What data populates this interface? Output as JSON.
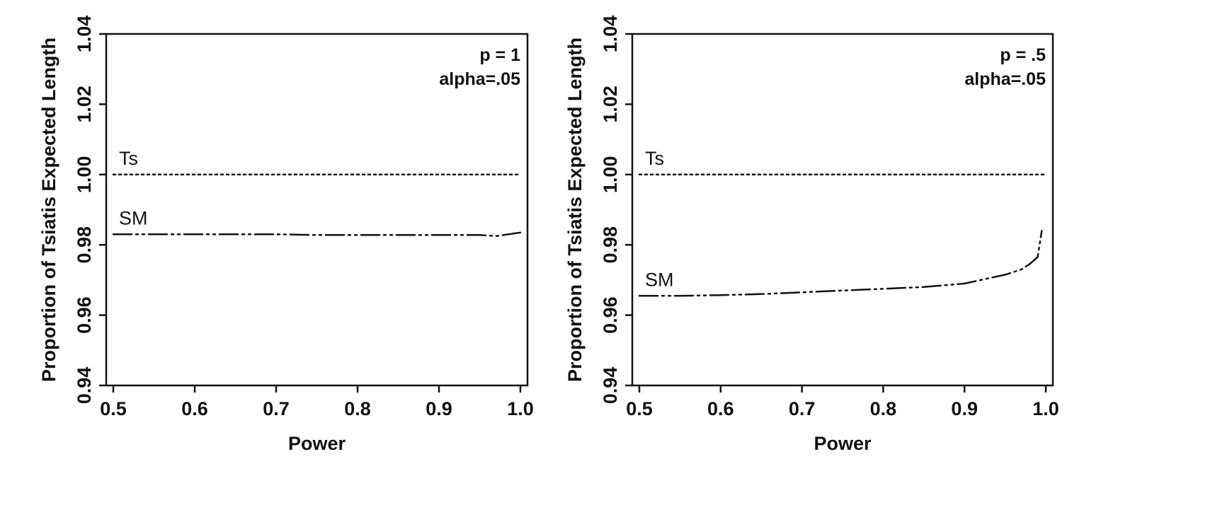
{
  "chart_data": [
    {
      "type": "line",
      "xlabel": "Power",
      "ylabel": "Proportion of Tsiatis Expected Length",
      "xlim": [
        0.5,
        1.0
      ],
      "ylim": [
        0.94,
        1.04
      ],
      "xticks": [
        "0.5",
        "0.6",
        "0.7",
        "0.8",
        "0.9",
        "1.0"
      ],
      "yticks": [
        "0.94",
        "0.96",
        "0.98",
        "1.00",
        "1.02",
        "1.04"
      ],
      "annotations": [
        "p = 1",
        "alpha=.05"
      ],
      "grid": false,
      "series": [
        {
          "name": "Ts",
          "style": "dotted",
          "x": [
            0.5,
            1.0
          ],
          "y": [
            1.0,
            1.0
          ]
        },
        {
          "name": "SM",
          "style": "dash-dot-dot",
          "x": [
            0.5,
            0.55,
            0.6,
            0.65,
            0.7,
            0.75,
            0.8,
            0.85,
            0.9,
            0.95,
            0.97,
            1.0
          ],
          "y": [
            0.983,
            0.983,
            0.983,
            0.983,
            0.983,
            0.9828,
            0.9828,
            0.9828,
            0.9828,
            0.9828,
            0.9825,
            0.9835
          ]
        }
      ]
    },
    {
      "type": "line",
      "xlabel": "Power",
      "ylabel": "Proportion of Tsiatis Expected Length",
      "xlim": [
        0.5,
        1.0
      ],
      "ylim": [
        0.94,
        1.04
      ],
      "xticks": [
        "0.5",
        "0.6",
        "0.7",
        "0.8",
        "0.9",
        "1.0"
      ],
      "yticks": [
        "0.94",
        "0.96",
        "0.98",
        "1.00",
        "1.02",
        "1.04"
      ],
      "annotations": [
        "p = .5",
        "alpha=.05"
      ],
      "grid": false,
      "series": [
        {
          "name": "Ts",
          "style": "dotted",
          "x": [
            0.5,
            1.0
          ],
          "y": [
            1.0,
            1.0
          ]
        },
        {
          "name": "SM",
          "style": "dash-dot-dot",
          "x": [
            0.5,
            0.55,
            0.6,
            0.65,
            0.7,
            0.75,
            0.8,
            0.85,
            0.9,
            0.93,
            0.95,
            0.97,
            0.98,
            0.99,
            0.995
          ],
          "y": [
            0.9655,
            0.9655,
            0.9657,
            0.966,
            0.9665,
            0.967,
            0.9675,
            0.968,
            0.969,
            0.9705,
            0.9715,
            0.973,
            0.9745,
            0.9765,
            0.984
          ]
        }
      ]
    }
  ]
}
